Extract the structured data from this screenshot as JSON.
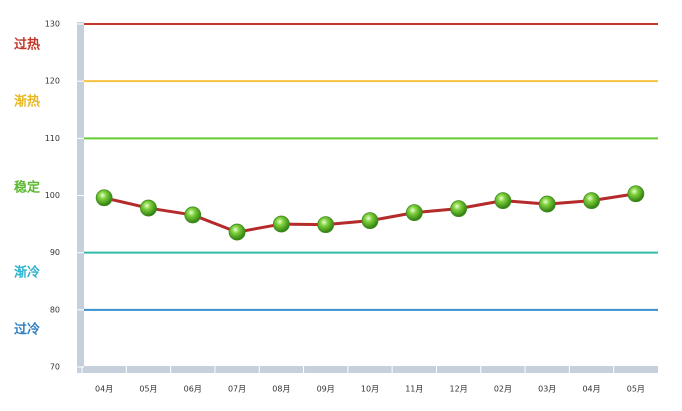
{
  "chart_data": {
    "type": "line",
    "categories": [
      "04月",
      "05月",
      "06月",
      "07月",
      "08月",
      "09月",
      "10月",
      "11月",
      "12月",
      "02月",
      "03月",
      "04月",
      "05月"
    ],
    "series": [
      {
        "color": "#b52a2a",
        "values": [
          99.6,
          97.8,
          96.6,
          93.6,
          95.0,
          94.9,
          95.6,
          97.0,
          97.7,
          99.1,
          98.5,
          99.1,
          100.3
        ]
      }
    ],
    "ylim": [
      70,
      130
    ],
    "yticks": [
      70,
      80,
      90,
      100,
      110,
      120,
      130
    ],
    "reference_lines": [
      {
        "value": 130,
        "color": "#c0392b"
      },
      {
        "value": 120,
        "color": "#f5c242"
      },
      {
        "value": 110,
        "color": "#66cc33"
      },
      {
        "value": 90,
        "color": "#33bbaa"
      },
      {
        "value": 80,
        "color": "#3a8fd0"
      }
    ],
    "zones": [
      {
        "label": "过热",
        "color": "#c0392b"
      },
      {
        "label": "渐热",
        "color": "#e8b923"
      },
      {
        "label": "稳定",
        "color": "#5cb832"
      },
      {
        "label": "渐冷",
        "color": "#2eb3cf"
      },
      {
        "label": "过冷",
        "color": "#2f7fc1"
      }
    ]
  }
}
